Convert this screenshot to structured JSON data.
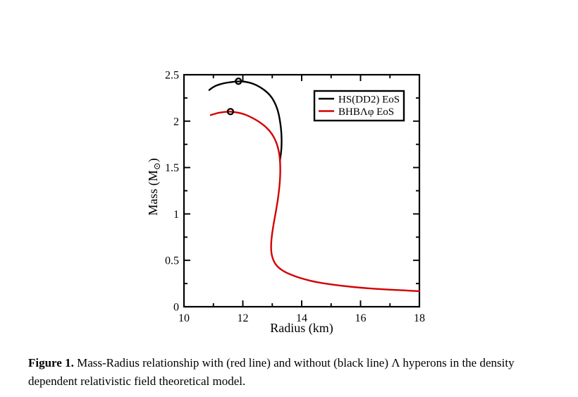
{
  "figure": {
    "caption_label": "Figure 1.",
    "caption_text": " Mass-Radius relationship with (red line) and without (black line) Λ hyperons in the density dependent relativistic field theoretical model."
  },
  "chart_data": {
    "type": "line",
    "title": "",
    "xlabel": "Radius (km)",
    "ylabel": "Mass (M⊙)",
    "ylabel_parts": {
      "prefix": "Mass (M",
      "sub": "⊙",
      "suffix": ")"
    },
    "xlim": [
      10,
      18
    ],
    "ylim": [
      0,
      2.5
    ],
    "x_major_ticks": [
      10,
      12,
      14,
      16,
      18
    ],
    "x_minor_ticks": [
      11,
      13,
      15,
      17
    ],
    "y_major_ticks": [
      0,
      0.5,
      1,
      1.5,
      2,
      2.5
    ],
    "y_minor_ticks": [
      0.25,
      0.75,
      1.25,
      1.75,
      2.25
    ],
    "grid": false,
    "frame_color": "#000000",
    "legend_position": "upper right",
    "series": [
      {
        "name": "HS(DD2) EoS",
        "color": "#000000",
        "marker_outline": "#000000",
        "max_mass_marker": {
          "radius": 11.85,
          "mass": 2.43
        },
        "points": [
          [
            10.86,
            2.335
          ],
          [
            10.95,
            2.36
          ],
          [
            11.1,
            2.385
          ],
          [
            11.3,
            2.405
          ],
          [
            11.55,
            2.42
          ],
          [
            11.85,
            2.43
          ],
          [
            12.1,
            2.425
          ],
          [
            12.35,
            2.405
          ],
          [
            12.6,
            2.365
          ],
          [
            12.82,
            2.315
          ],
          [
            13.0,
            2.25
          ],
          [
            13.13,
            2.17
          ],
          [
            13.22,
            2.08
          ],
          [
            13.28,
            1.97
          ],
          [
            13.315,
            1.86
          ],
          [
            13.32,
            1.75
          ],
          [
            13.3,
            1.66
          ],
          [
            13.26,
            1.57
          ]
        ]
      },
      {
        "name": "BHBΛφ EoS",
        "color": "#d40000",
        "marker_outline": "#000000",
        "max_mass_marker": {
          "radius": 11.58,
          "mass": 2.103
        },
        "points": [
          [
            10.91,
            2.065
          ],
          [
            11.05,
            2.08
          ],
          [
            11.2,
            2.092
          ],
          [
            11.4,
            2.1
          ],
          [
            11.58,
            2.103
          ],
          [
            11.8,
            2.095
          ],
          [
            12.05,
            2.075
          ],
          [
            12.3,
            2.04
          ],
          [
            12.55,
            1.995
          ],
          [
            12.8,
            1.935
          ],
          [
            13.0,
            1.86
          ],
          [
            13.13,
            1.78
          ],
          [
            13.21,
            1.7
          ],
          [
            13.26,
            1.6
          ],
          [
            13.275,
            1.5
          ],
          [
            13.27,
            1.4
          ],
          [
            13.24,
            1.28
          ],
          [
            13.19,
            1.15
          ],
          [
            13.12,
            1.02
          ],
          [
            13.05,
            0.9
          ],
          [
            12.99,
            0.78
          ],
          [
            12.96,
            0.68
          ],
          [
            12.96,
            0.6
          ],
          [
            13.0,
            0.53
          ],
          [
            13.09,
            0.465
          ],
          [
            13.23,
            0.415
          ],
          [
            13.45,
            0.37
          ],
          [
            13.75,
            0.33
          ],
          [
            14.1,
            0.295
          ],
          [
            14.5,
            0.265
          ],
          [
            15.0,
            0.24
          ],
          [
            15.5,
            0.22
          ],
          [
            16.0,
            0.205
          ],
          [
            16.5,
            0.193
          ],
          [
            17.0,
            0.184
          ],
          [
            17.5,
            0.176
          ],
          [
            18.0,
            0.168
          ]
        ]
      }
    ]
  }
}
